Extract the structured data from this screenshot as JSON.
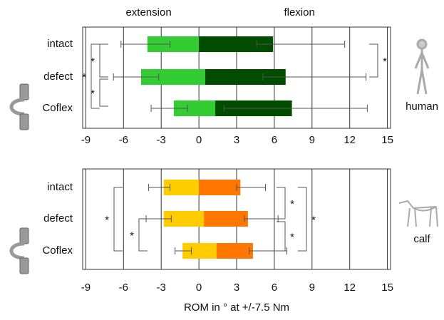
{
  "chart_data": [
    {
      "type": "bar",
      "header_left": "extension",
      "header_right": "flexion",
      "categories": [
        "intact",
        "defect",
        "Coflex"
      ],
      "extension": [
        -4.1,
        -4.6,
        -2.0
      ],
      "neutral": [
        0,
        0.5,
        1.3
      ],
      "flexion": [
        5.9,
        6.9,
        7.4
      ],
      "extension_range": [
        [
          -6.2,
          -2.3
        ],
        [
          -6.8,
          -3.2
        ],
        [
          -3.8,
          -0.9
        ]
      ],
      "flexion_range": [
        [
          4.6,
          11.6
        ],
        [
          5.1,
          13.3
        ],
        [
          2.0,
          13.4
        ]
      ],
      "colors": {
        "extension": "#33cc33",
        "flexion": "#004d00"
      },
      "xlim": [
        -9.25,
        15.25
      ],
      "xticks": [
        -9,
        -6,
        -3,
        0,
        3,
        6,
        9,
        12,
        15
      ],
      "grid": true,
      "side_label": "human",
      "significance": [
        {
          "label": "*",
          "pair": [
            0,
            1
          ],
          "side": "left"
        },
        {
          "label": "*",
          "pair": [
            1,
            2
          ],
          "side": "left"
        },
        {
          "label": "*",
          "pair": [
            0,
            2
          ],
          "side": "left"
        },
        {
          "label": "*",
          "pair": [
            0,
            1
          ],
          "side": "right"
        }
      ]
    },
    {
      "type": "bar",
      "categories": [
        "intact",
        "defect",
        "Coflex"
      ],
      "extension": [
        -2.8,
        -2.8,
        -1.3
      ],
      "neutral": [
        0,
        0.4,
        1.4
      ],
      "flexion": [
        3.3,
        3.9,
        4.3
      ],
      "extension_range": [
        [
          -4.0,
          -2.3
        ],
        [
          -4.2,
          -2.2
        ],
        [
          -1.9,
          -0.6
        ]
      ],
      "flexion_range": [
        [
          3.0,
          5.3
        ],
        [
          3.6,
          6.3
        ],
        [
          4.0,
          7.0
        ]
      ],
      "colors": {
        "extension": "#ffcc00",
        "flexion": "#ff7700"
      },
      "xlim": [
        -9.25,
        15.25
      ],
      "xticks": [
        -9,
        -6,
        -3,
        0,
        3,
        6,
        9,
        12,
        15
      ],
      "grid": true,
      "side_label": "calf",
      "xlabel": "ROM in ° at +/-7.5 Nm",
      "significance": [
        {
          "label": "*",
          "pair": [
            0,
            2
          ],
          "side": "left"
        },
        {
          "label": "*",
          "pair": [
            1,
            2
          ],
          "side": "left"
        },
        {
          "label": "*",
          "pair": [
            0,
            1
          ],
          "side": "right"
        },
        {
          "label": "*",
          "pair": [
            1,
            2
          ],
          "side": "right"
        },
        {
          "label": "*",
          "pair": [
            0,
            2
          ],
          "side": "right"
        }
      ]
    }
  ]
}
